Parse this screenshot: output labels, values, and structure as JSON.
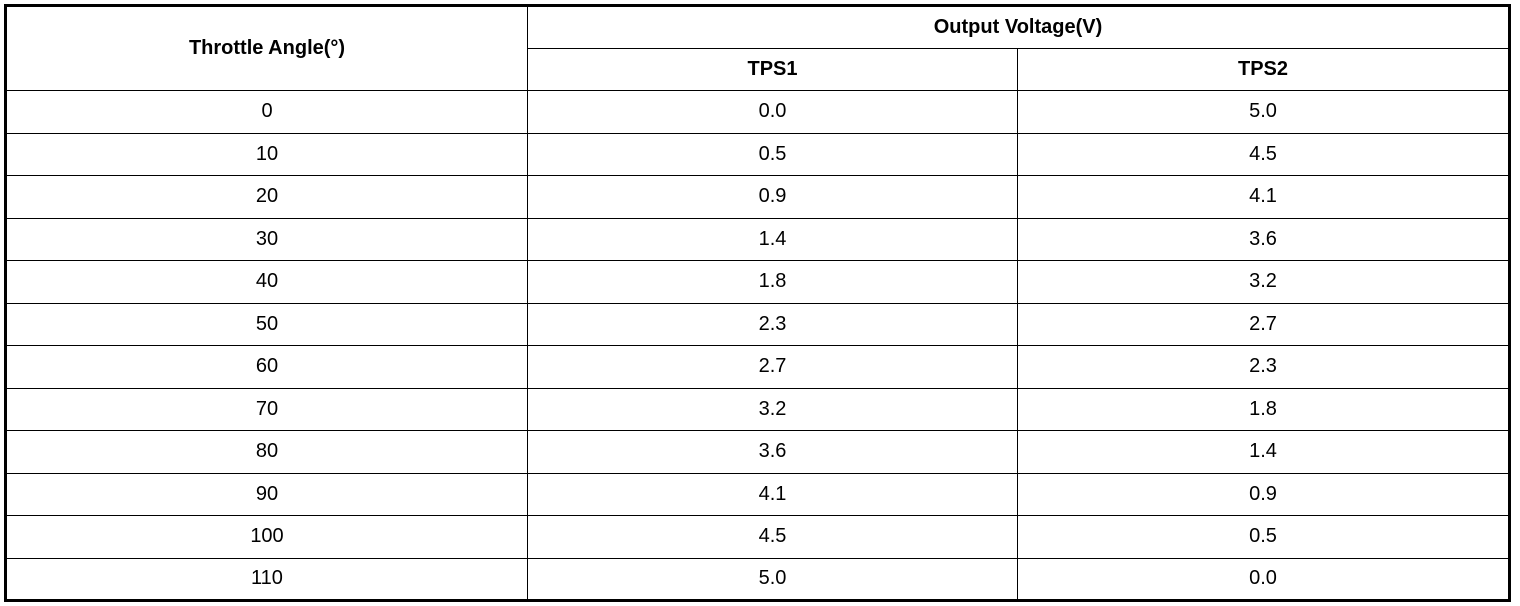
{
  "headers": {
    "angle": "Throttle Angle(°)",
    "voltage_group": "Output Voltage(V)",
    "tps1": "TPS1",
    "tps2": "TPS2"
  },
  "rows": [
    {
      "angle": "0",
      "tps1": "0.0",
      "tps2": "5.0"
    },
    {
      "angle": "10",
      "tps1": "0.5",
      "tps2": "4.5"
    },
    {
      "angle": "20",
      "tps1": "0.9",
      "tps2": "4.1"
    },
    {
      "angle": "30",
      "tps1": "1.4",
      "tps2": "3.6"
    },
    {
      "angle": "40",
      "tps1": "1.8",
      "tps2": "3.2"
    },
    {
      "angle": "50",
      "tps1": "2.3",
      "tps2": "2.7"
    },
    {
      "angle": "60",
      "tps1": "2.7",
      "tps2": "2.3"
    },
    {
      "angle": "70",
      "tps1": "3.2",
      "tps2": "1.8"
    },
    {
      "angle": "80",
      "tps1": "3.6",
      "tps2": "1.4"
    },
    {
      "angle": "90",
      "tps1": "4.1",
      "tps2": "0.9"
    },
    {
      "angle": "100",
      "tps1": "4.5",
      "tps2": "0.5"
    },
    {
      "angle": "110",
      "tps1": "5.0",
      "tps2": "0.0"
    }
  ]
}
